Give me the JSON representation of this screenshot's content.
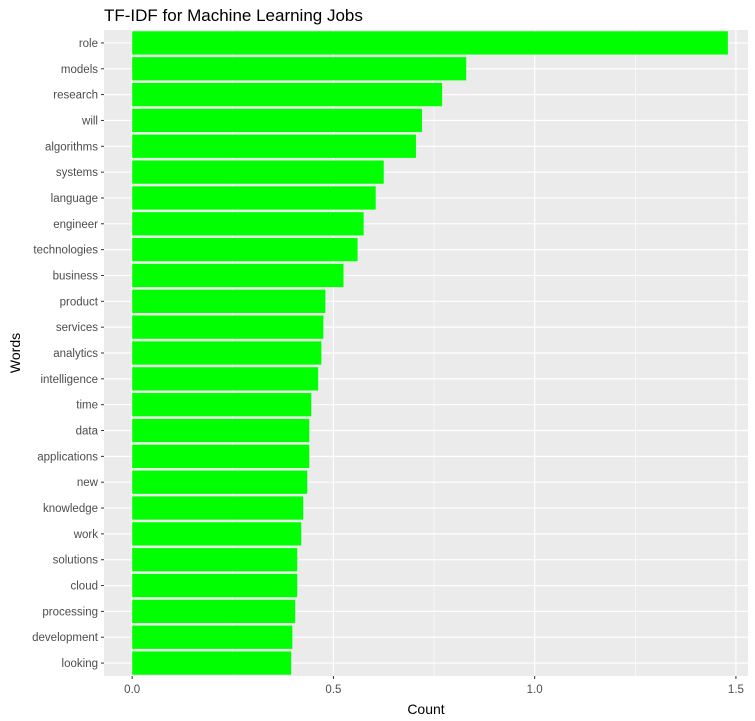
{
  "chart_data": {
    "type": "bar",
    "orientation": "horizontal",
    "title": "TF-IDF for Machine Learning Jobs",
    "xlabel": "Count",
    "ylabel": "Words",
    "xlim": [
      -0.07,
      1.53
    ],
    "xticks": [
      0.0,
      0.5,
      1.0,
      1.5
    ],
    "xtick_labels": [
      "0.0",
      "0.5",
      "1.0",
      "1.5"
    ],
    "grid": true,
    "bar_color": "#00ff00",
    "panel_color": "#ebebeb",
    "categories": [
      "role",
      "models",
      "research",
      "will",
      "algorithms",
      "systems",
      "language",
      "engineer",
      "technologies",
      "business",
      "product",
      "services",
      "analytics",
      "intelligence",
      "time",
      "data",
      "applications",
      "new",
      "knowledge",
      "work",
      "solutions",
      "cloud",
      "processing",
      "development",
      "looking"
    ],
    "values": [
      1.48,
      0.83,
      0.77,
      0.72,
      0.705,
      0.625,
      0.605,
      0.575,
      0.56,
      0.525,
      0.48,
      0.475,
      0.47,
      0.462,
      0.445,
      0.44,
      0.44,
      0.435,
      0.425,
      0.42,
      0.41,
      0.41,
      0.405,
      0.398,
      0.395
    ]
  }
}
